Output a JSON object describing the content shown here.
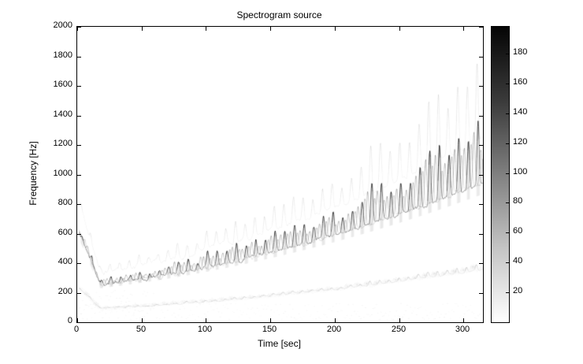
{
  "chart_data": {
    "type": "heatmap",
    "subtype": "spectrogram",
    "title": "Spectrogram source",
    "xlabel": "Time [sec]",
    "ylabel": "Frequency [Hz]",
    "xlim": [
      0,
      315
    ],
    "ylim": [
      0,
      2000
    ],
    "xticks": [
      0,
      50,
      100,
      150,
      200,
      250,
      300
    ],
    "yticks": [
      0,
      200,
      400,
      600,
      800,
      1000,
      1200,
      1400,
      1600,
      1800,
      2000
    ],
    "grid": false,
    "colormap": "reversed-gray (white=low intensity, black=high intensity)",
    "colorbar": {
      "position": "right",
      "range": [
        0,
        198
      ],
      "ticks": [
        20,
        40,
        60,
        80,
        100,
        120,
        140,
        160,
        180
      ]
    },
    "ridge": {
      "description": "Fundamental frequency track rising from ~250 Hz at t=20 s to ~1000 Hz at t=310 s with periodic upward peaks every ~7.5 s; peak excursions grow from ~+60 Hz to ~+350 Hz; faint subharmonic band near 0.38x and faint harmonic near 1.3x; initial burst around 400-600 Hz during the first ~15 s; weak diffuse energy below 150 Hz.",
      "base_hz": 230,
      "slope_hz_per_sec": 1.0,
      "quad_hz_per_sec2": 0.004,
      "peak_period_sec": 7.5,
      "peak_amp_base_hz": 40,
      "peak_amp_quad": 0.003,
      "initial": {
        "end_sec": 18,
        "end_hz": 250,
        "fall_rate_hz_per_sec": 22
      },
      "sample_points": [
        {
          "t": 10,
          "f": 450
        },
        {
          "t": 20,
          "f": 252
        },
        {
          "t": 50,
          "f": 290
        },
        {
          "t": 100,
          "f": 410
        },
        {
          "t": 150,
          "f": 470
        },
        {
          "t": 200,
          "f": 590
        },
        {
          "t": 250,
          "f": 730
        },
        {
          "t": 300,
          "f": 890
        },
        {
          "t": 313,
          "f": 1000
        }
      ]
    }
  }
}
